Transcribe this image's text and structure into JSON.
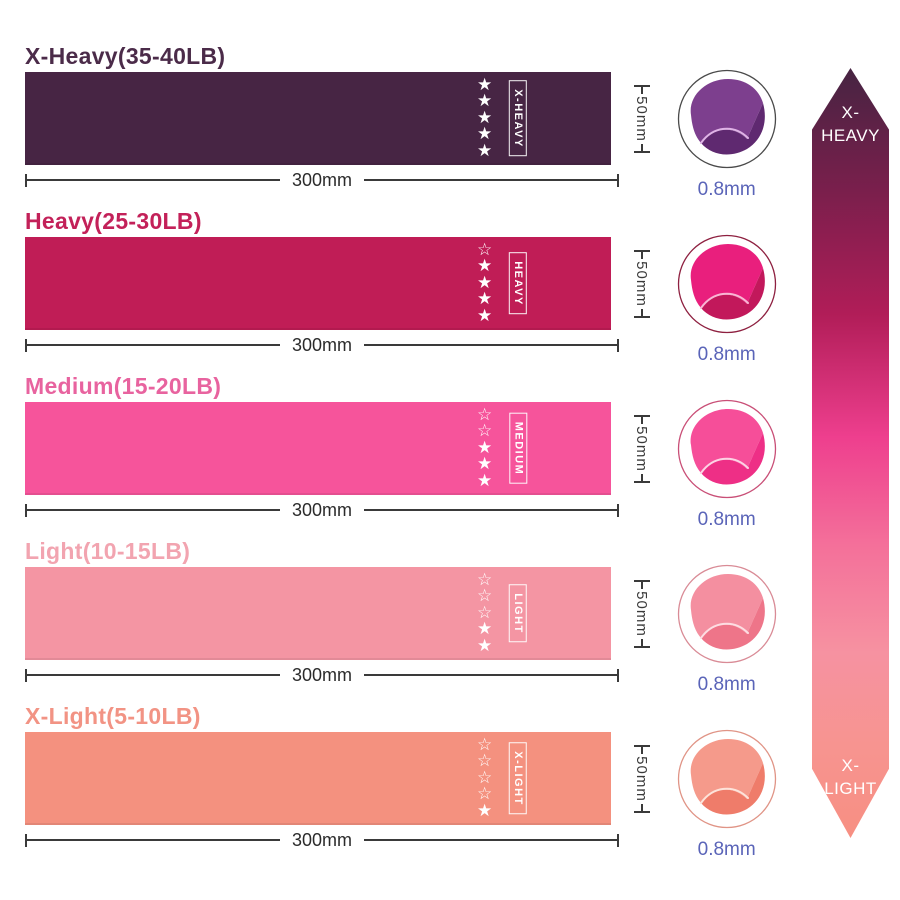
{
  "measure": {
    "width": "300mm",
    "height": "50mm",
    "thickness": "0.8mm"
  },
  "glyphs": {
    "star_filled": "★",
    "star_outline": "☆"
  },
  "bands": [
    {
      "title": "X-Heavy(35-40LB)",
      "label": "X-HEAVY",
      "stars_filled": 5,
      "stars_outline": 0,
      "band_color": "#472544",
      "title_color": "#4b2b49",
      "fold": {
        "main": "#7d3f8e",
        "inner": "#5f2970",
        "edge": "#dfb3e6",
        "ring": "#4a4a4a"
      }
    },
    {
      "title": "Heavy(25-30LB)",
      "label": "HEAVY",
      "stars_filled": 4,
      "stars_outline": 1,
      "band_color": "#c01d56",
      "title_color": "#c32159",
      "fold": {
        "main": "#e91f7d",
        "inner": "#c2185b",
        "edge": "#f9b6d4",
        "ring": "#8e2040"
      }
    },
    {
      "title": "Medium(15-20LB)",
      "label": "MEDIUM",
      "stars_filled": 3,
      "stars_outline": 2,
      "band_color": "#f6549b",
      "title_color": "#e8639f",
      "fold": {
        "main": "#f64e99",
        "inner": "#ee2f86",
        "edge": "#fcd3e4",
        "ring": "#c94f77"
      }
    },
    {
      "title": "Light(10-15LB)",
      "label": "LIGHT",
      "stars_filled": 2,
      "stars_outline": 3,
      "band_color": "#f495a3",
      "title_color": "#f2a4b0",
      "fold": {
        "main": "#f48fa0",
        "inner": "#ee7589",
        "edge": "#fddde2",
        "ring": "#d98b96"
      }
    },
    {
      "title": "X-Light(5-10LB)",
      "label": "X-LIGHT",
      "stars_filled": 1,
      "stars_outline": 4,
      "band_color": "#f4917f",
      "title_color": "#f29384",
      "fold": {
        "main": "#f59a8b",
        "inner": "#ef7c6a",
        "edge": "#fde3da",
        "ring": "#e09486"
      }
    }
  ],
  "arrow": {
    "top_line1": "X-",
    "top_line2": "HEAVY",
    "bottom_line1": "X-",
    "bottom_line2": "LIGHT",
    "gradient_stops": [
      "#462442 0%",
      "#7a1f4c 16%",
      "#b11d58 32%",
      "#ee3f8e 48%",
      "#f4709a 62%",
      "#f692a1 76%",
      "#f79490 88%",
      "#f78f82 100%"
    ]
  }
}
